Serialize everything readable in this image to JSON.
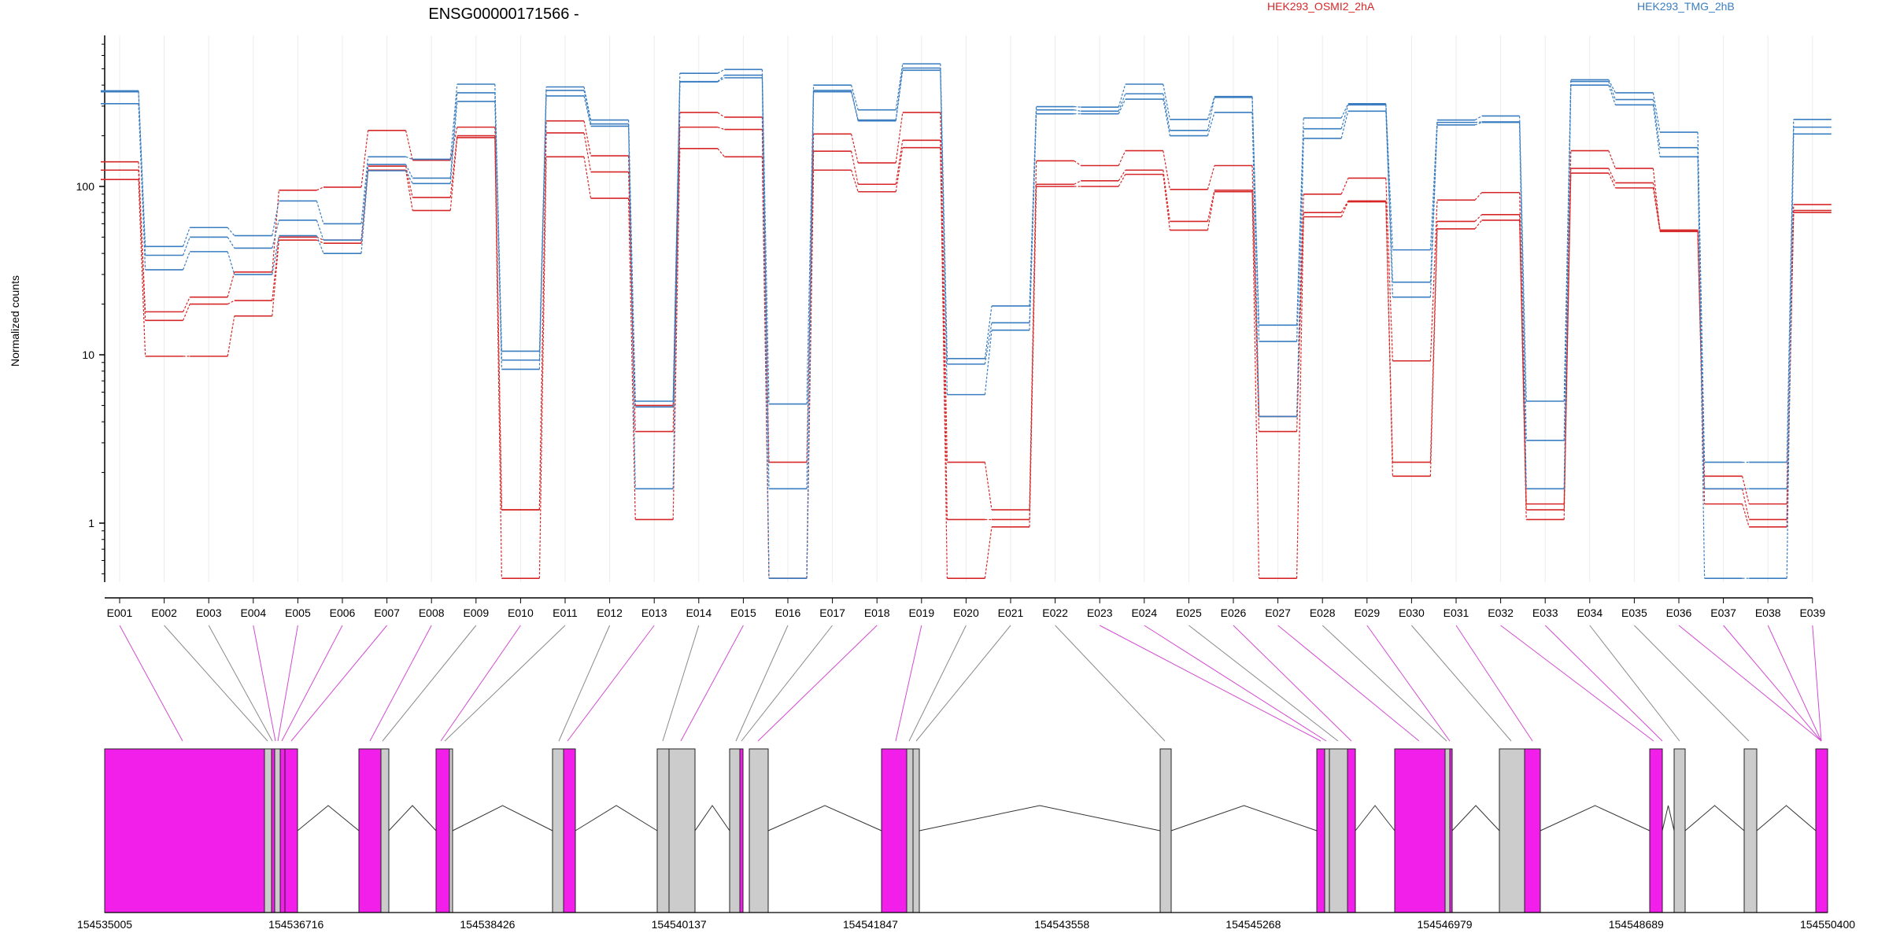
{
  "chart_data": {
    "type": "line",
    "title": "ENSG00000171566 -",
    "ylabel": "Normalized counts",
    "yscale": "log",
    "ylim": [
      0.45,
      700
    ],
    "yticks": [
      1,
      10,
      100
    ],
    "yticklabels": [
      "1",
      "10",
      "100"
    ],
    "legend": [
      {
        "name": "HEK293_OSMI2_2hA",
        "color": "#d62728"
      },
      {
        "name": "HEK293_TMG_2hB",
        "color": "#3a7dc0"
      }
    ],
    "categories": [
      "E001",
      "E002",
      "E003",
      "E004",
      "E005",
      "E006",
      "E007",
      "E008",
      "E009",
      "E010",
      "E011",
      "E012",
      "E013",
      "E014",
      "E015",
      "E016",
      "E017",
      "E018",
      "E019",
      "E020",
      "E021",
      "E022",
      "E023",
      "E024",
      "E025",
      "E026",
      "E027",
      "E028",
      "E029",
      "E030",
      "E031",
      "E032",
      "E033",
      "E034",
      "E035",
      "E036",
      "E037",
      "E038",
      "E039"
    ],
    "series": [
      {
        "group": "red",
        "values": [
          140,
          18,
          22,
          31,
          95,
          99,
          215,
          143,
          225,
          1.2,
          245,
          152,
          5,
          275,
          258,
          2.3,
          205,
          138,
          275,
          2.3,
          1.2,
          142,
          133,
          163,
          96,
          133,
          4.3,
          90,
          112,
          9.2,
          83,
          92,
          1.3,
          163,
          128,
          55,
          1.9,
          1.3,
          78
        ]
      },
      {
        "group": "red",
        "values": [
          125,
          16,
          20,
          21,
          50,
          48,
          132,
          86,
          200,
          1.2,
          208,
          122,
          3.5,
          225,
          218,
          0.47,
          162,
          103,
          188,
          1.05,
          1.05,
          103,
          108,
          125,
          62,
          95,
          3.5,
          70,
          82,
          2.3,
          62,
          68,
          1.2,
          128,
          105,
          55,
          1.6,
          1.05,
          72
        ]
      },
      {
        "group": "red",
        "values": [
          110,
          9.8,
          9.8,
          17,
          48,
          46,
          125,
          72,
          195,
          0.47,
          150,
          85,
          1.05,
          168,
          150,
          0.47,
          125,
          93,
          170,
          0.47,
          0.95,
          100,
          100,
          118,
          55,
          93,
          0.47,
          66,
          81,
          1.9,
          56,
          63,
          1.05,
          120,
          98,
          54,
          1.3,
          0.95,
          70
        ]
      },
      {
        "group": "blue",
        "values": [
          370,
          44,
          57,
          51,
          82,
          60,
          150,
          145,
          405,
          10.5,
          390,
          248,
          5.3,
          470,
          495,
          5.1,
          400,
          285,
          535,
          9.5,
          19.5,
          298,
          296,
          405,
          250,
          342,
          15,
          255,
          310,
          42,
          248,
          262,
          5.3,
          430,
          360,
          210,
          2.3,
          2.3,
          250
        ]
      },
      {
        "group": "blue",
        "values": [
          365,
          39,
          50,
          43,
          63,
          48,
          135,
          112,
          360,
          9.3,
          372,
          235,
          4.9,
          420,
          458,
          1.6,
          372,
          248,
          505,
          8.8,
          15.5,
          285,
          280,
          355,
          215,
          338,
          12,
          220,
          305,
          27,
          240,
          242,
          3.1,
          420,
          328,
          170,
          1.6,
          1.6,
          225
        ]
      },
      {
        "group": "blue",
        "values": [
          310,
          32,
          41,
          30,
          51,
          40,
          124,
          104,
          320,
          8.2,
          345,
          228,
          1.6,
          418,
          442,
          0.47,
          365,
          245,
          490,
          5.8,
          14,
          270,
          270,
          330,
          200,
          275,
          4.3,
          193,
          280,
          22,
          232,
          240,
          1.6,
          400,
          305,
          150,
          0.47,
          0.47,
          205
        ]
      }
    ],
    "exon_coordinates": [
      "154535005",
      "154536716",
      "154538426",
      "154540137",
      "154541847",
      "154543558",
      "154545268",
      "154546979",
      "154548689",
      "154550400"
    ]
  },
  "colors": {
    "red": "#d62728",
    "blue": "#3a7dc0",
    "highlight": "#f21ee9",
    "exon": "#cccccc"
  }
}
